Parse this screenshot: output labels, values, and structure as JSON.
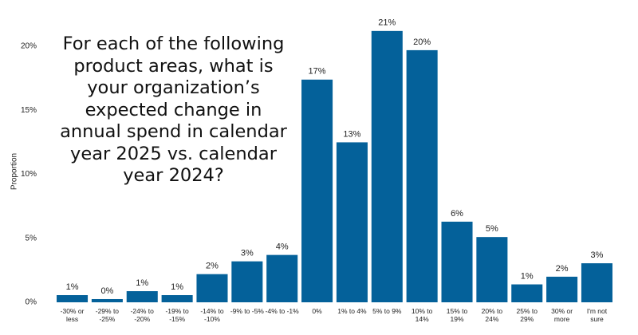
{
  "chart_data": {
    "type": "bar",
    "title": "For each of the following product areas, what is your organization’s expected change in annual spend in calendar year 2025 vs. calendar year 2024?",
    "y_label": "Proportion",
    "categories": [
      "-30% or less",
      "-29% to -25%",
      "-24% to -20%",
      "-19% to -15%",
      "-14% to -10%",
      "-9% to -5%",
      "-4% to -1%",
      "0%",
      "1% to 4%",
      "5% to 9%",
      "10% to 14%",
      "15% to 19%",
      "20% to 24%",
      "25% to 29%",
      "30% or more",
      "I'm not sure"
    ],
    "values": [
      0.56,
      0.25,
      0.87,
      0.56,
      2.2,
      3.2,
      3.7,
      17.4,
      12.5,
      21.2,
      19.7,
      6.3,
      5.1,
      1.4,
      2.0,
      3.05
    ],
    "value_labels": [
      "1%",
      "0%",
      "1%",
      "1%",
      "2%",
      "3%",
      "4%",
      "17%",
      "13%",
      "21%",
      "20%",
      "6%",
      "5%",
      "1%",
      "2%",
      "3%"
    ],
    "color": "#04619a",
    "ylim": [
      0,
      22
    ],
    "yticks": [
      {
        "value": 0,
        "label": "0%"
      },
      {
        "value": 5,
        "label": "5%"
      },
      {
        "value": 10,
        "label": "10%"
      },
      {
        "value": 15,
        "label": "15%"
      },
      {
        "value": 20,
        "label": "20%"
      }
    ],
    "grid": false
  }
}
